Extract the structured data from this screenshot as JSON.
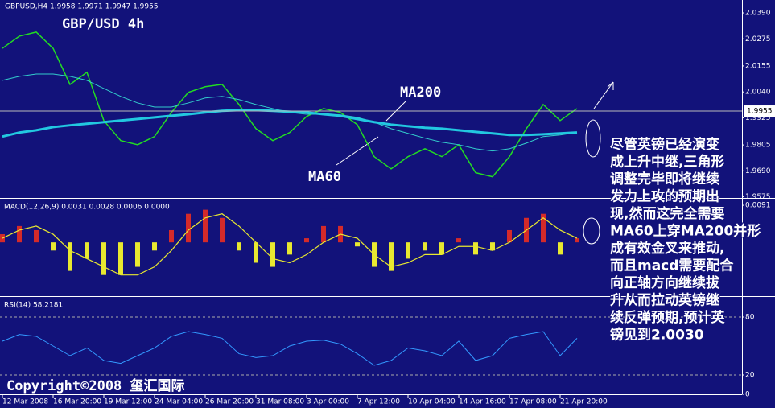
{
  "chart_data": [
    {
      "type": "line",
      "header": "GBPUSD,H4 1.9958 1.9971 1.9947 1.9955",
      "label": "GBP/USD 4h",
      "annotations": [
        "MA200",
        "MA60"
      ],
      "last_price": 1.9955,
      "ylim": [
        1.957,
        2.044
      ],
      "yticks": [
        {
          "value": 2.039,
          "label": "2.0390"
        },
        2.0275,
        2.0155,
        {
          "value": 2.004,
          "label": "2.0040"
        },
        1.9925,
        1.9805,
        {
          "value": 1.969,
          "label": "1.9690"
        },
        1.9575
      ],
      "series": [
        {
          "name": "Close",
          "color": "#22dd22",
          "values": [
            2.0233,
            2.0287,
            2.0305,
            2.0233,
            2.0073,
            2.0127,
            1.9913,
            1.9824,
            1.9806,
            1.9842,
            1.9949,
            2.0038,
            2.0063,
            2.0073,
            1.9984,
            1.9877,
            1.9824,
            1.986,
            1.9931,
            1.9966,
            1.9949,
            1.9895,
            1.9753,
            1.9699,
            1.9753,
            1.9788,
            1.9753,
            1.9806,
            1.9682,
            1.9664,
            1.9753,
            1.9877,
            1.9984,
            1.9913,
            1.9966
          ]
        },
        {
          "name": "MA60",
          "color": "#33cccc",
          "values": [
            2.0091,
            2.0109,
            2.0119,
            2.0119,
            2.0109,
            2.0091,
            2.0055,
            2.002,
            1.9991,
            1.9973,
            1.9973,
            1.9991,
            2.0013,
            2.002,
            2.0006,
            1.9984,
            1.9966,
            1.9949,
            1.9941,
            1.9941,
            1.9938,
            1.9927,
            1.9906,
            1.9877,
            1.9856,
            1.9835,
            1.9817,
            1.9806,
            1.9788,
            1.9778,
            1.9788,
            1.9813,
            1.9842,
            1.9849,
            1.986
          ]
        },
        {
          "name": "MA200",
          "color": "#22c8e0",
          "values": [
            1.9842,
            1.986,
            1.987,
            1.9884,
            1.9892,
            1.9899,
            1.9906,
            1.9913,
            1.992,
            1.9927,
            1.9934,
            1.9941,
            1.9949,
            1.9956,
            1.9959,
            1.9959,
            1.9956,
            1.9952,
            1.9949,
            1.9941,
            1.9934,
            1.992,
            1.9906,
            1.9895,
            1.9888,
            1.9881,
            1.9877,
            1.987,
            1.9863,
            1.9856,
            1.9849,
            1.9849,
            1.9852,
            1.9856,
            1.986
          ]
        }
      ]
    },
    {
      "type": "macd",
      "header": "MACD(12,26,9) 0.0031 0.0028 0.0006 0.0000",
      "ylim": [
        -0.0128,
        0.0101
      ],
      "yticks": [
        {
          "value": 0.0091,
          "label": "0.0091"
        }
      ],
      "up_color": "#d42a2a",
      "down_color": "#e8e830",
      "series": [
        {
          "name": "Histogram",
          "color": "#d42a2a",
          "values": [
            0.002,
            0.004,
            0.003,
            -0.002,
            -0.007,
            -0.004,
            -0.008,
            -0.008,
            -0.006,
            -0.002,
            0.003,
            0.007,
            0.008,
            0.006,
            -0.002,
            -0.005,
            -0.006,
            -0.003,
            0.001,
            0.004,
            0.004,
            -0.001,
            -0.006,
            -0.007,
            -0.004,
            -0.002,
            -0.003,
            0.001,
            -0.003,
            -0.002,
            0.003,
            0.006,
            0.007,
            -0.003,
            0.001
          ]
        },
        {
          "name": "Signal",
          "color": "#e8e830",
          "values": [
            0.001,
            0.003,
            0.004,
            0.002,
            -0.002,
            -0.004,
            -0.006,
            -0.008,
            -0.008,
            -0.006,
            -0.002,
            0.003,
            0.006,
            0.007,
            0.004,
            0,
            -0.004,
            -0.005,
            -0.003,
            0,
            0.002,
            0.001,
            -0.003,
            -0.006,
            -0.005,
            -0.003,
            -0.003,
            -0.001,
            -0.001,
            -0.002,
            0,
            0.003,
            0.006,
            0.003,
            0.001
          ]
        }
      ]
    },
    {
      "type": "line",
      "header": "RSI(14) 58.2181",
      "ylim": [
        0,
        100
      ],
      "yticks": [
        80,
        20,
        0
      ],
      "grid": true,
      "categories": [
        "12 Mar 2008",
        null,
        null,
        "16 Mar 20:00",
        null,
        null,
        "19 Mar 12:00",
        null,
        null,
        "24 Mar 04:00",
        null,
        null,
        "26 Mar 20:00",
        null,
        null,
        "31 Mar 08:00",
        null,
        null,
        "3 Apr 00:00",
        null,
        null,
        "7 Apr 12:00",
        null,
        null,
        "10 Apr 04:00",
        null,
        null,
        "14 Apr 16:00",
        null,
        null,
        "17 Apr 08:00",
        null,
        null,
        "21 Apr 20:00",
        null
      ],
      "series": [
        {
          "name": "RSI",
          "color": "#3399ff",
          "values": [
            55,
            62,
            60,
            50,
            40,
            48,
            35,
            32,
            40,
            48,
            60,
            65,
            62,
            58,
            42,
            38,
            40,
            50,
            55,
            56,
            52,
            42,
            30,
            35,
            48,
            45,
            40,
            55,
            35,
            40,
            58,
            62,
            65,
            40,
            58
          ]
        }
      ]
    }
  ],
  "note": [
    "尽管英镑已经演变",
    "成上升中继,三角形",
    "调整完毕即将继续",
    "发力上攻的预期出",
    "现,然而这完全需要",
    "MA60上穿MA200并形",
    "成有效金叉来推动,",
    "而且macd需要配合",
    "向正轴方向继续拔",
    "升从而拉动英镑继",
    "续反弹预期,预计英",
    "镑见到2.0030"
  ],
  "copyright": "Copyright©2008 玺汇国际"
}
